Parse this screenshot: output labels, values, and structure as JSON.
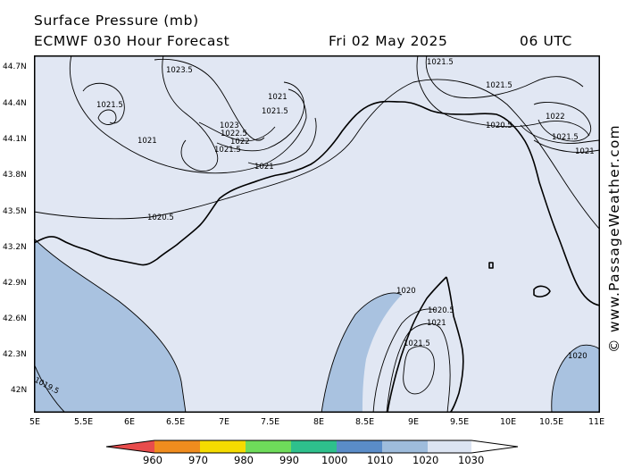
{
  "header": {
    "title_line1": "Surface Pressure (mb)",
    "title_line2": "ECMWF 030 Hour Forecast",
    "date": "Fri 02 May 2025",
    "time": "06 UTC"
  },
  "credit": "© www.PassageWeather.com",
  "axes": {
    "lat_labels": [
      "44.7N",
      "44.4N",
      "44.1N",
      "43.8N",
      "43.5N",
      "43.2N",
      "42.9N",
      "42.6N",
      "42.3N",
      "42N"
    ],
    "lon_labels": [
      "5E",
      "5.5E",
      "6E",
      "6.5E",
      "7E",
      "7.5E",
      "8E",
      "8.5E",
      "9E",
      "9.5E",
      "10E",
      "10.5E",
      "11E"
    ]
  },
  "isobar_labels": [
    "1023.5",
    "1021.5",
    "1021",
    "1021.5",
    "1023",
    "1022.5",
    "1022",
    "1021.5",
    "1021",
    "1021",
    "1020.5",
    "1021.5",
    "1021.5",
    "1020.5",
    "1022",
    "1021.5",
    "1021",
    "1020",
    "1020.5",
    "1021",
    "1021.5",
    "1020",
    "1019.5"
  ],
  "colorbar": {
    "labels": [
      "960",
      "970",
      "980",
      "990",
      "1000",
      "1010",
      "1020",
      "1030"
    ],
    "colors": [
      "#e84c4c",
      "#f08c1e",
      "#f5dc00",
      "#6edc5a",
      "#2ec08c",
      "#5a8cc8",
      "#9ebcdc",
      "#dce4f2"
    ]
  },
  "map_colors": {
    "land_fill": "#e1e7f3",
    "low_fill": "#a9c2e0",
    "coast": "#000000",
    "isobar": "#000000"
  }
}
